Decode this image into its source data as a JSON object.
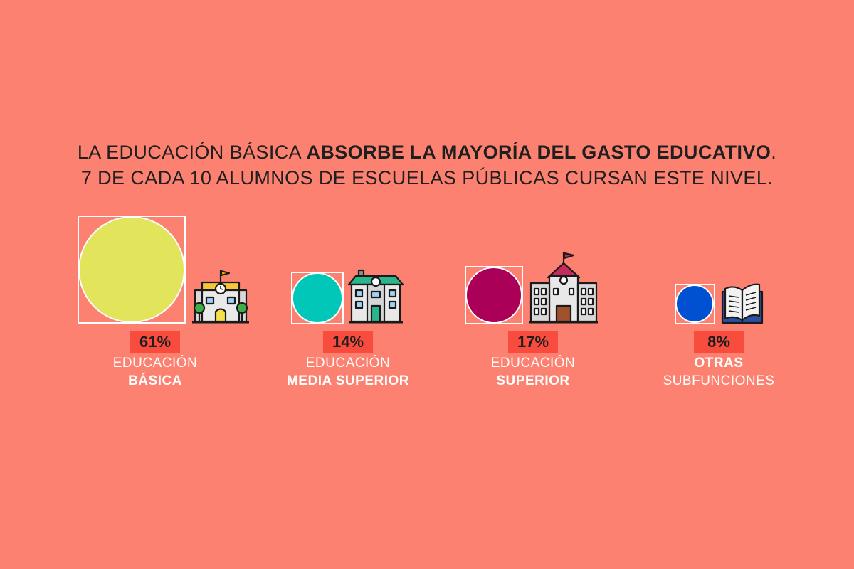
{
  "colors": {
    "background": "#fd8170",
    "badge": "#f84d3e",
    "outline": "#ffffff"
  },
  "headline": {
    "line1_regular": "LA EDUCACIÓN BÁSICA ",
    "line1_bold": "ABSORBE LA MAYORÍA DEL GASTO EDUCATIVO",
    "line1_end": ".",
    "line2": "7 DE CADA 10 ALUMNOS DE ESCUELAS PÚBLICAS CURSAN ESTE NIVEL."
  },
  "chart_data": {
    "type": "bubble",
    "unit": "%",
    "items": [
      {
        "percent": 61,
        "value_label": "61%",
        "label_line1": "EDUCACIÓN",
        "label_line2": "BÁSICA",
        "bold_line": 2,
        "color": "#e2e55c",
        "icon": "primary-school-icon"
      },
      {
        "percent": 14,
        "value_label": "14%",
        "label_line1": "EDUCACIÓN",
        "label_line2": "MEDIA SUPERIOR",
        "bold_line": 2,
        "color": "#00c7b8",
        "icon": "high-school-icon"
      },
      {
        "percent": 17,
        "value_label": "17%",
        "label_line1": "EDUCACIÓN",
        "label_line2": "SUPERIOR",
        "bold_line": 2,
        "color": "#aa0058",
        "icon": "university-icon"
      },
      {
        "percent": 8,
        "value_label": "8%",
        "label_line1": "OTRAS",
        "label_line2": "SUBFUNCIONES",
        "bold_line": 1,
        "color": "#0050d2",
        "icon": "open-book-icon"
      }
    ]
  }
}
